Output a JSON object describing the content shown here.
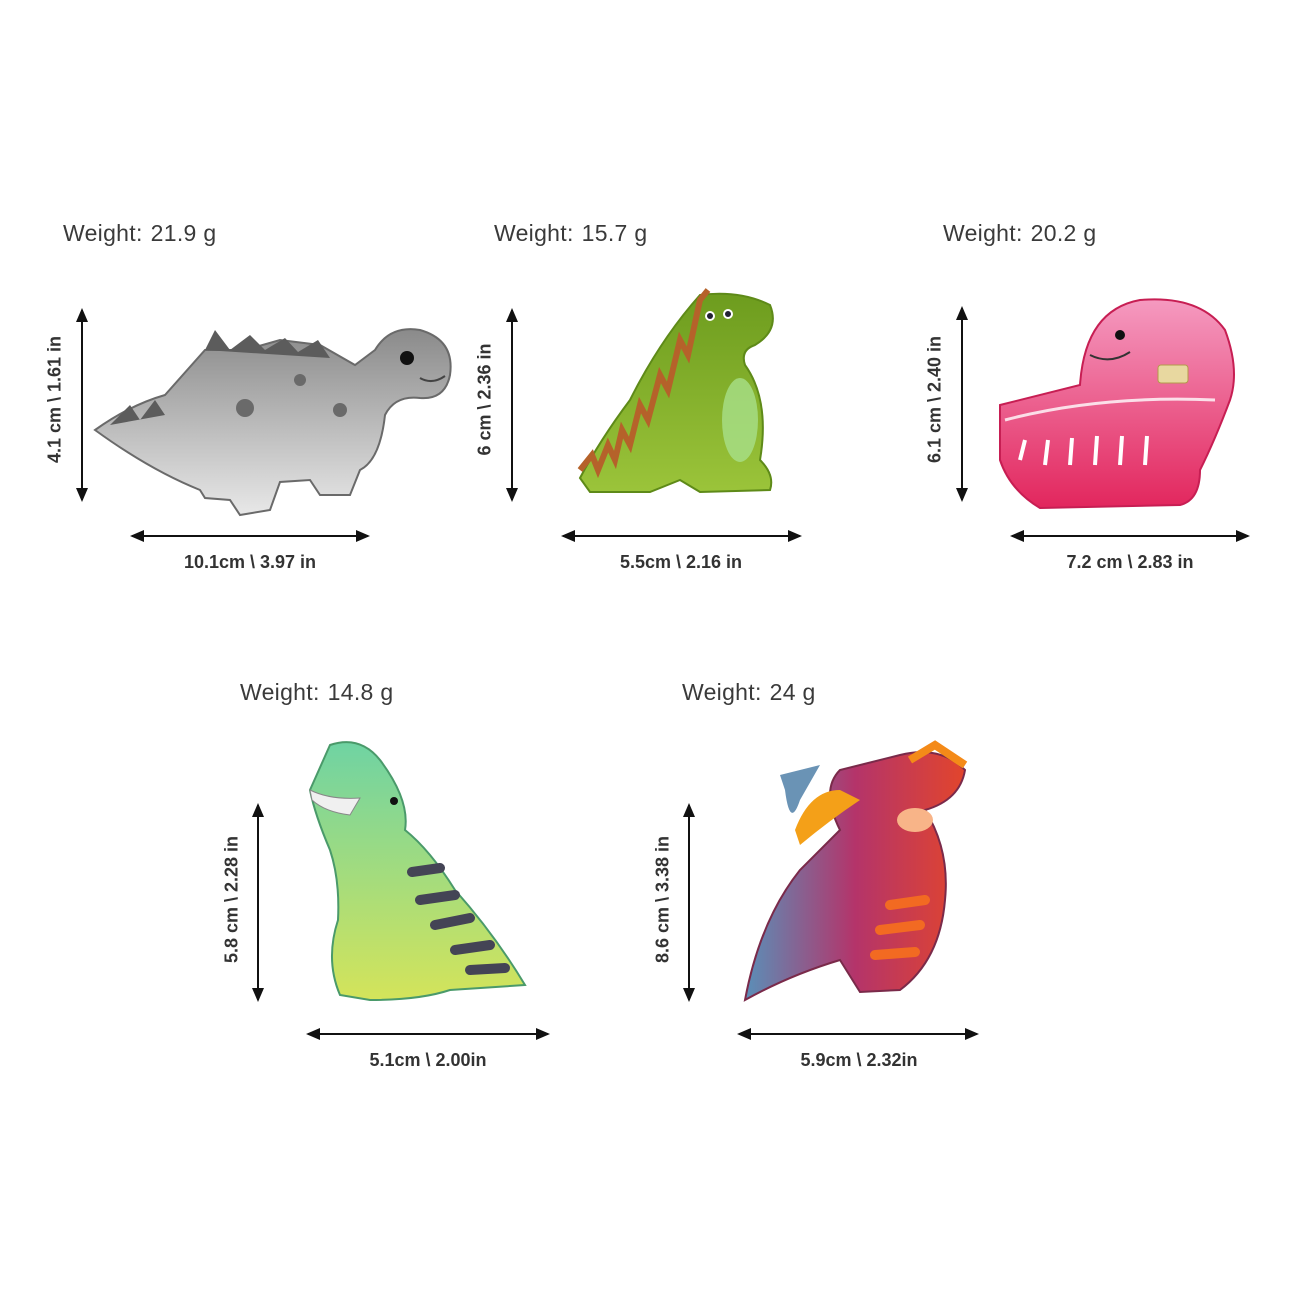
{
  "items": [
    {
      "weight_label": "Weight:",
      "weight_value": "21.9 g",
      "width_dim": "10.1cm \\ 3.97 in",
      "height_dim": "4.1 cm \\ 1.61 in",
      "color": "#8c8c8c"
    },
    {
      "weight_label": "Weight:",
      "weight_value": "15.7 g",
      "width_dim": "5.5cm \\ 2.16 in",
      "height_dim": "6 cm \\ 2.36 in",
      "color": "#7fae2c"
    },
    {
      "weight_label": "Weight:",
      "weight_value": "20.2 g",
      "width_dim": "7.2 cm \\ 2.83 in",
      "height_dim": "6.1 cm \\ 2.40 in",
      "color": "#e8356e"
    },
    {
      "weight_label": "Weight:",
      "weight_value": "14.8 g",
      "width_dim": "5.1cm \\ 2.00in",
      "height_dim": "5.8 cm \\ 2.28 in",
      "color": "#5cbf8a"
    },
    {
      "weight_label": "Weight:",
      "weight_value": "24 g",
      "width_dim": "5.9cm \\ 2.32in",
      "height_dim": "8.6 cm \\ 3.38 in",
      "color": "#c2334f"
    }
  ]
}
